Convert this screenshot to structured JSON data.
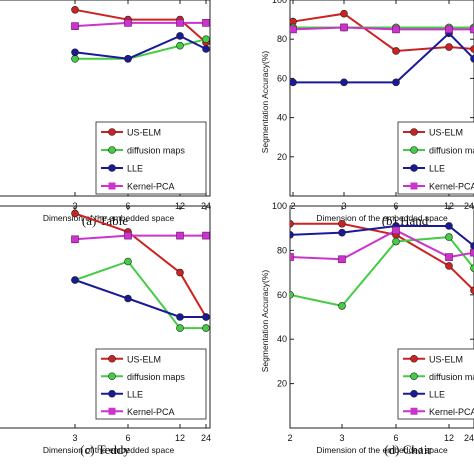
{
  "chart_data": [
    {
      "type": "line",
      "caption": "(a) Table",
      "xlabel": "Dimension of the embedded space",
      "ylabel": "",
      "categories": [
        "3",
        "6",
        "12",
        "24"
      ],
      "yticks": [],
      "ylim": [
        40,
        100
      ],
      "legend": "bottom-right",
      "series": [
        {
          "name": "US-ELM",
          "color": "#cc2222",
          "marker": "o",
          "values": [
            97,
            94,
            94,
            87
          ]
        },
        {
          "name": "diffusion maps",
          "color": "#44cc44",
          "marker": "o",
          "values": [
            82,
            82,
            86,
            88
          ]
        },
        {
          "name": "LLE",
          "color": "#1a1a99",
          "marker": "o",
          "values": [
            84,
            82,
            89,
            85
          ]
        },
        {
          "name": "Kernel-PCA",
          "color": "#cc33cc",
          "marker": "s",
          "values": [
            92,
            93,
            93,
            93
          ]
        }
      ]
    },
    {
      "type": "line",
      "caption": "(b) Hand",
      "xlabel": "Dimension of the embedded space",
      "ylabel": "Segmentation Accuracy(%)",
      "categories": [
        "2",
        "3",
        "6",
        "12",
        "24"
      ],
      "yticks": [
        "20",
        "40",
        "60",
        "80",
        "100"
      ],
      "ylim": [
        0,
        100
      ],
      "legend": "bottom-right",
      "series": [
        {
          "name": "US-ELM",
          "color": "#cc2222",
          "marker": "o",
          "values": [
            89,
            93,
            74,
            76,
            75
          ]
        },
        {
          "name": "diffusion maps",
          "color": "#44cc44",
          "marker": "o",
          "values": [
            86,
            86,
            86,
            86,
            86
          ]
        },
        {
          "name": "LLE",
          "color": "#1a1a99",
          "marker": "o",
          "values": [
            58,
            58,
            58,
            83,
            70
          ]
        },
        {
          "name": "Kernel-PCA",
          "color": "#cc33cc",
          "marker": "s",
          "values": [
            85,
            86,
            85,
            85,
            85
          ]
        }
      ]
    },
    {
      "type": "line",
      "caption": "(c) Teddy",
      "xlabel": "Dimension of the embedded space",
      "ylabel": "",
      "categories": [
        "3",
        "6",
        "12",
        "24"
      ],
      "yticks": [],
      "ylim": [
        40,
        100
      ],
      "legend": "bottom-right",
      "series": [
        {
          "name": "US-ELM",
          "color": "#cc2222",
          "marker": "o",
          "values": [
            98,
            93,
            82,
            70
          ]
        },
        {
          "name": "diffusion maps",
          "color": "#44cc44",
          "marker": "o",
          "values": [
            80,
            85,
            67,
            67
          ]
        },
        {
          "name": "LLE",
          "color": "#1a1a99",
          "marker": "o",
          "values": [
            80,
            75,
            70,
            70
          ]
        },
        {
          "name": "Kernel-PCA",
          "color": "#cc33cc",
          "marker": "s",
          "values": [
            91,
            92,
            92,
            92
          ]
        }
      ]
    },
    {
      "type": "line",
      "caption": "(d) Chair",
      "xlabel": "Dimension of the embedded space",
      "ylabel": "Segmentation Accuracy(%)",
      "categories": [
        "2",
        "3",
        "6",
        "12",
        "24"
      ],
      "yticks": [
        "20",
        "40",
        "60",
        "80",
        "100"
      ],
      "ylim": [
        0,
        100
      ],
      "legend": "bottom-right",
      "series": [
        {
          "name": "US-ELM",
          "color": "#cc2222",
          "marker": "o",
          "values": [
            92,
            92,
            87,
            73,
            62
          ]
        },
        {
          "name": "diffusion maps",
          "color": "#44cc44",
          "marker": "o",
          "values": [
            60,
            55,
            84,
            86,
            72
          ]
        },
        {
          "name": "LLE",
          "color": "#1a1a99",
          "marker": "o",
          "values": [
            87,
            88,
            91,
            91,
            82
          ]
        },
        {
          "name": "Kernel-PCA",
          "color": "#cc33cc",
          "marker": "s",
          "values": [
            77,
            76,
            89,
            77,
            79
          ]
        }
      ]
    }
  ]
}
